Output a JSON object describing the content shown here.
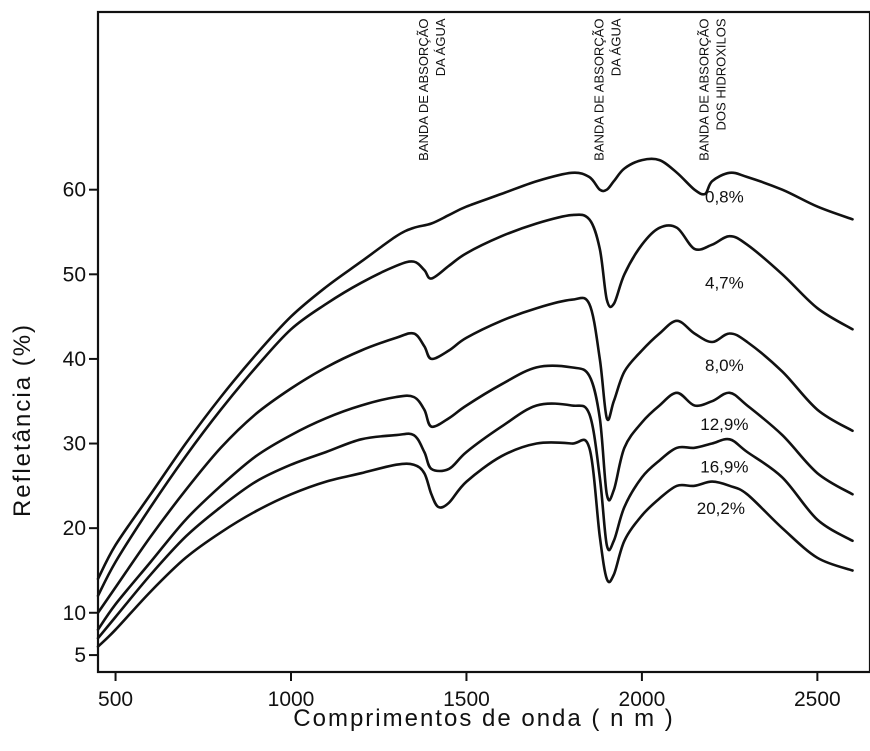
{
  "chart_data": {
    "type": "line",
    "title": "",
    "xlabel": "Comprimentos  de  onda  ( n m )",
    "ylabel": "Refletância  (%)",
    "xlim": [
      450,
      2650
    ],
    "ylim": [
      3,
      81
    ],
    "grid": false,
    "x_ticks": [
      {
        "value": 500,
        "label": "500"
      },
      {
        "value": 1000,
        "label": "1000"
      },
      {
        "value": 1500,
        "label": "1500"
      },
      {
        "value": 2000,
        "label": "2000"
      },
      {
        "value": 2500,
        "label": "2500"
      }
    ],
    "y_ticks": [
      {
        "value": 5,
        "label": "5"
      },
      {
        "value": 10,
        "label": "10"
      },
      {
        "value": 20,
        "label": "20"
      },
      {
        "value": 30,
        "label": "30"
      },
      {
        "value": 40,
        "label": "40"
      },
      {
        "value": 50,
        "label": "50"
      },
      {
        "value": 60,
        "label": "60"
      }
    ],
    "annotations": [
      {
        "lines": [
          "BANDA DE ABSORÇÃO",
          "DA ÁGUA"
        ],
        "x": 1400,
        "y_top": 80
      },
      {
        "lines": [
          "BANDA DE ABSORÇÃO",
          "DA ÁGUA"
        ],
        "x": 1900,
        "y_top": 80
      },
      {
        "lines": [
          "BANDA DE ABSORÇÃO",
          "DOS HIDROXILOS"
        ],
        "x": 2200,
        "y_top": 80
      }
    ],
    "series": [
      {
        "name": "0,8%",
        "label_x": 2235,
        "label_y": 58.5,
        "x": [
          450,
          500,
          600,
          700,
          800,
          900,
          1000,
          1100,
          1200,
          1300,
          1350,
          1400,
          1450,
          1500,
          1600,
          1700,
          1800,
          1850,
          1880,
          1900,
          1920,
          1950,
          2000,
          2050,
          2100,
          2150,
          2180,
          2200,
          2250,
          2300,
          2400,
          2500,
          2600
        ],
        "y": [
          14,
          18,
          24,
          30,
          35.5,
          40.5,
          45,
          48.5,
          51.5,
          54.5,
          55.5,
          56,
          57,
          58,
          59.5,
          61,
          62,
          61.5,
          60,
          60,
          61,
          62.5,
          63.5,
          63.5,
          62,
          60,
          59.5,
          61,
          62,
          61.5,
          60,
          58,
          56.5
        ]
      },
      {
        "name": "4,7%",
        "label_x": 2235,
        "label_y": 48.3,
        "x": [
          450,
          500,
          600,
          700,
          800,
          900,
          1000,
          1100,
          1200,
          1300,
          1350,
          1380,
          1400,
          1450,
          1500,
          1600,
          1700,
          1800,
          1850,
          1880,
          1900,
          1920,
          1950,
          2000,
          2050,
          2100,
          2150,
          2200,
          2250,
          2300,
          2400,
          2500,
          2600
        ],
        "y": [
          12,
          16,
          22.5,
          28.5,
          34,
          39,
          43.5,
          46.5,
          49,
          51,
          51.5,
          50.5,
          49.5,
          51,
          52.5,
          54.5,
          56,
          57,
          56.5,
          53,
          47,
          46.5,
          50,
          53.5,
          55.5,
          55.5,
          53,
          53.5,
          54.5,
          53.5,
          50,
          46,
          43.5
        ]
      },
      {
        "name": "8,0%",
        "label_x": 2235,
        "label_y": 38.6,
        "x": [
          450,
          500,
          600,
          700,
          800,
          900,
          1000,
          1100,
          1200,
          1300,
          1350,
          1380,
          1400,
          1450,
          1500,
          1600,
          1700,
          1800,
          1850,
          1880,
          1900,
          1920,
          1950,
          2000,
          2050,
          2100,
          2150,
          2200,
          2250,
          2300,
          2400,
          2500,
          2600
        ],
        "y": [
          10,
          13,
          19,
          24.5,
          29.5,
          33.5,
          36.5,
          39,
          41,
          42.5,
          43,
          41.5,
          40,
          41,
          42.5,
          44.5,
          46,
          47,
          46.5,
          40,
          33,
          35,
          38.5,
          41,
          43,
          44.5,
          43,
          42,
          43,
          42,
          38.5,
          34,
          31.5
        ]
      },
      {
        "name": "12,9%",
        "label_x": 2235,
        "label_y": 31.6,
        "x": [
          450,
          500,
          600,
          700,
          800,
          900,
          1000,
          1100,
          1200,
          1300,
          1350,
          1380,
          1400,
          1450,
          1500,
          1600,
          1700,
          1800,
          1850,
          1880,
          1900,
          1920,
          1950,
          2000,
          2050,
          2100,
          2150,
          2200,
          2250,
          2300,
          2400,
          2500,
          2600
        ],
        "y": [
          8,
          11,
          16,
          21,
          25,
          28.5,
          31,
          33,
          34.5,
          35.5,
          35.5,
          34,
          32,
          33,
          34.5,
          37,
          39,
          39,
          38,
          33,
          24,
          24.5,
          29.5,
          32.5,
          34.5,
          36,
          34.5,
          35,
          36,
          34.5,
          31,
          26.5,
          24
        ]
      },
      {
        "name": "16,9%",
        "label_x": 2235,
        "label_y": 26.6,
        "x": [
          450,
          500,
          600,
          700,
          800,
          900,
          1000,
          1100,
          1200,
          1300,
          1350,
          1380,
          1400,
          1450,
          1500,
          1600,
          1700,
          1800,
          1850,
          1880,
          1900,
          1920,
          1950,
          2000,
          2050,
          2100,
          2150,
          2200,
          2250,
          2300,
          2400,
          2500,
          2600
        ],
        "y": [
          7,
          9.5,
          14.5,
          19,
          22.5,
          25.5,
          27.5,
          29,
          30.5,
          31,
          31,
          29,
          27,
          27,
          29,
          32,
          34.5,
          34.5,
          33.5,
          26,
          18,
          18.5,
          22.5,
          26,
          28,
          29.5,
          29.5,
          30,
          30.5,
          29,
          26,
          21,
          18.5
        ]
      },
      {
        "name": "20,2%",
        "label_x": 2225,
        "label_y": 21.7,
        "x": [
          450,
          500,
          600,
          700,
          800,
          900,
          1000,
          1100,
          1200,
          1300,
          1350,
          1380,
          1400,
          1420,
          1450,
          1500,
          1600,
          1700,
          1800,
          1850,
          1880,
          1900,
          1920,
          1950,
          2000,
          2050,
          2100,
          2150,
          2200,
          2250,
          2300,
          2400,
          2500,
          2600
        ],
        "y": [
          6,
          8,
          12.5,
          16.5,
          19.5,
          22,
          24,
          25.5,
          26.5,
          27.5,
          27.5,
          26.5,
          24,
          22.5,
          23,
          25.5,
          28.5,
          30,
          30,
          29.5,
          19,
          14,
          14.5,
          18.5,
          21.5,
          23.5,
          25,
          25,
          25.5,
          25,
          24,
          20,
          16.5,
          15
        ]
      }
    ]
  }
}
